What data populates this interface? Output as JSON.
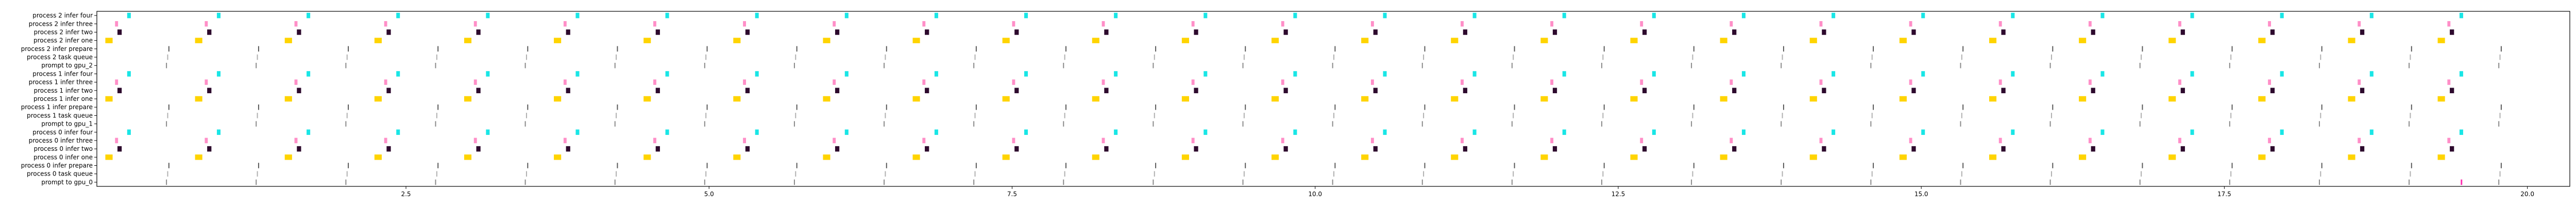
{
  "chart_data": {
    "type": "scatter",
    "title": "",
    "xlabel": "",
    "ylabel": "",
    "xlim": [
      -0.05,
      20.35
    ],
    "x_ticks": [
      2.5,
      5.0,
      7.5,
      10.0,
      12.5,
      15.0,
      17.5,
      20.0
    ],
    "x_tick_labels": [
      "2.5",
      "5.0",
      "7.5",
      "10.0",
      "12.5",
      "15.0",
      "17.5",
      "20.0"
    ],
    "grid": false,
    "categories": [
      "process 2 infer four",
      "process 2 infer three",
      "process 2 infer two",
      "process 2 infer one",
      "process 2 infer prepare",
      "process 2 task queue",
      "prompt to gpu_2",
      "process 1 infer four",
      "process 1 infer three",
      "process 1 infer two",
      "process 1 infer one",
      "process 1 infer prepare",
      "process 1 task queue",
      "prompt to gpu_1",
      "process 0 infer four",
      "process 0 infer three",
      "process 0 infer two",
      "process 0 infer one",
      "process 0 infer prepare",
      "process 0 task queue",
      "prompt to gpu_0"
    ],
    "cycle": {
      "count": 27,
      "start": 0.0,
      "period": 0.74,
      "process_offsets": [
        0.0,
        0.0,
        0.0
      ]
    },
    "stage_offsets": {
      "prompt to gpu": 0.52,
      "task queue": 0.53,
      "infer prepare": 0.54,
      "infer one": 0.02,
      "infer two": 0.12,
      "infer three": 0.1,
      "infer four": 0.2
    },
    "stage_widths": {
      "prompt to gpu": 0.005,
      "task queue": 0.005,
      "infer prepare": 0.005,
      "infer one": 0.06,
      "infer two": 0.035,
      "infer three": 0.025,
      "infer four": 0.03
    },
    "stage_colors": {
      "prompt to gpu": "#8a8a8a",
      "task queue": "#b0b0b0",
      "infer prepare": "#5a5a5a",
      "infer one": "#ffd400",
      "infer two": "#2d0a2d",
      "infer three": "#ff8fc8",
      "infer four": "#19e6e6"
    },
    "extra_marks": [
      {
        "row": "prompt to gpu_0",
        "x": 19.45,
        "color": "#ff2fb0"
      }
    ]
  }
}
